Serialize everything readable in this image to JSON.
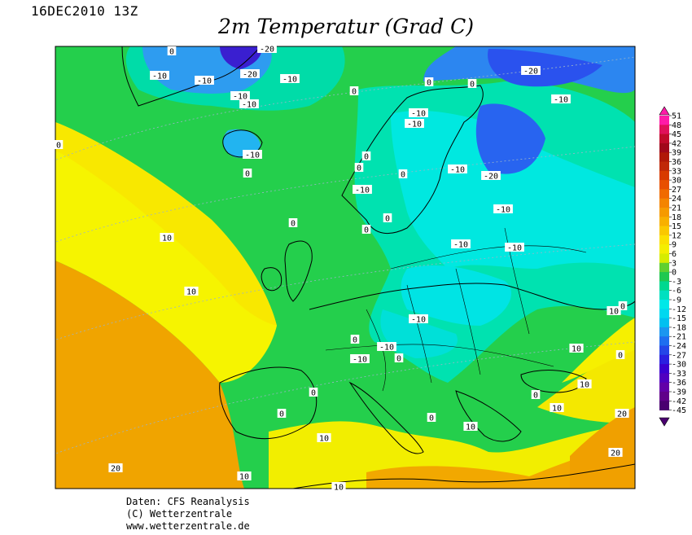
{
  "header": {
    "datetime": "16DEC2010 13Z",
    "title": "2m Temperatur (Grad C)"
  },
  "footer": {
    "line1": "Daten: CFS Reanalysis",
    "line2": "(C) Wetterzentrale",
    "line3": "www.wetterzentrale.de"
  },
  "legend": {
    "ticks": [
      "51",
      "48",
      "45",
      "42",
      "39",
      "36",
      "33",
      "30",
      "27",
      "24",
      "21",
      "18",
      "15",
      "12",
      "9",
      "6",
      "3",
      "0",
      "-3",
      "-6",
      "-9",
      "-12",
      "-15",
      "-18",
      "-21",
      "-24",
      "-27",
      "-30",
      "-33",
      "-36",
      "-39",
      "-42",
      "-45"
    ],
    "colors": [
      "#ff1aa8",
      "#e0105a",
      "#c00a2a",
      "#a0081a",
      "#b01808",
      "#c02808",
      "#d83a00",
      "#e85000",
      "#f06a00",
      "#f48400",
      "#f69a00",
      "#f8b000",
      "#fac800",
      "#fbe000",
      "#f4ee00",
      "#d6ec00",
      "#60d030",
      "#20c850",
      "#00d890",
      "#00e0c0",
      "#00e8e8",
      "#00d8f0",
      "#00c0f0",
      "#1a96f0",
      "#1e6ef0",
      "#2446e8",
      "#2a20e0",
      "#3a00d0",
      "#5000c0",
      "#6200a8",
      "#60008a",
      "#4a0070"
    ]
  },
  "contour_labels": [
    "0",
    "-10",
    "-20",
    "10",
    "20"
  ],
  "icons": {
    "legend_up": "triangle-up-icon",
    "legend_down": "triangle-down-icon"
  }
}
